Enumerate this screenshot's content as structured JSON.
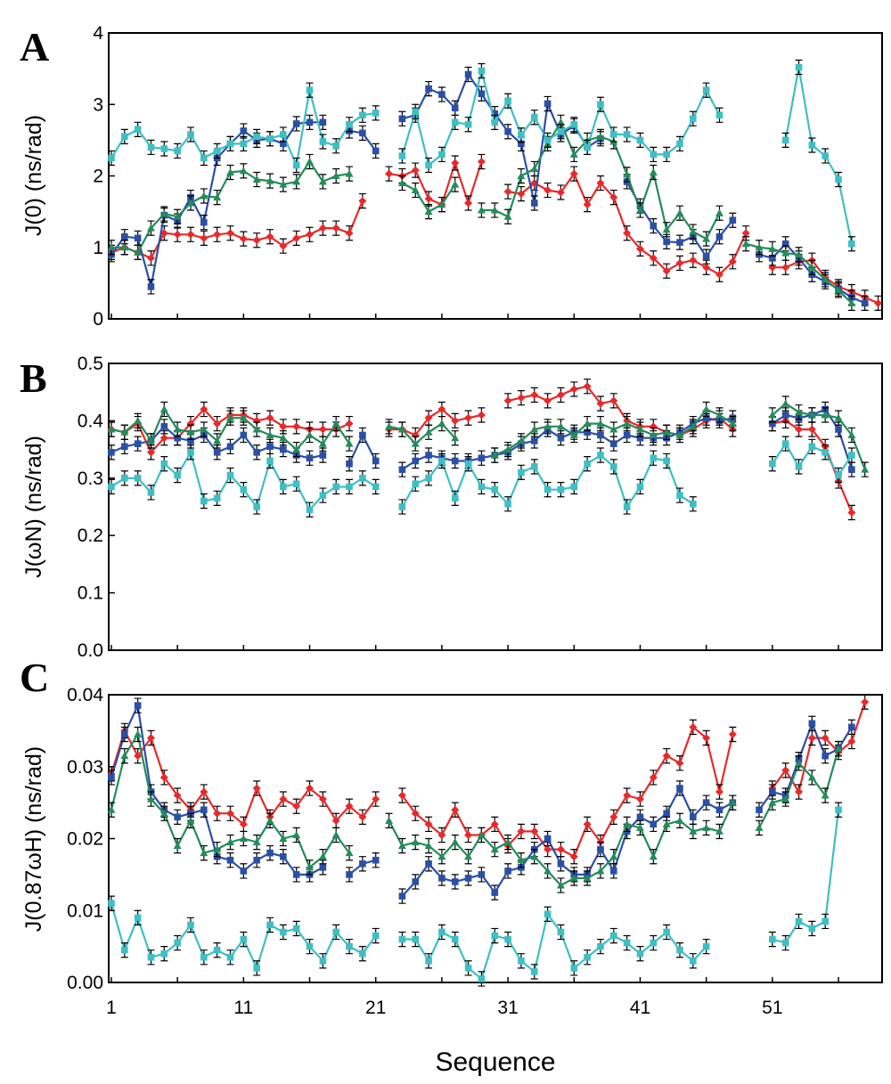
{
  "figure": {
    "xlabel": "Sequence",
    "x_ticks": [
      1,
      11,
      21,
      31,
      41,
      51
    ]
  },
  "series_colors": {
    "red": "#e8292a",
    "blue": "#2b4fa6",
    "green": "#238c5a",
    "cyan": "#3dbfc4"
  },
  "chart_data": [
    {
      "type": "line",
      "panel": "A",
      "ylabel": "J(0) (ns/rad)",
      "ylim": [
        0,
        4
      ],
      "xlim": [
        1,
        59
      ],
      "y_ticks": [
        0,
        1,
        2,
        3,
        4
      ],
      "y_tick_labels": [
        "0",
        "1",
        "2",
        "3",
        "4"
      ],
      "x": [
        1,
        2,
        3,
        4,
        5,
        6,
        7,
        8,
        9,
        10,
        11,
        12,
        13,
        14,
        15,
        16,
        17,
        18,
        19,
        20,
        21,
        22,
        23,
        24,
        25,
        26,
        27,
        28,
        29,
        30,
        31,
        32,
        33,
        34,
        35,
        36,
        37,
        38,
        39,
        40,
        41,
        42,
        43,
        44,
        45,
        46,
        47,
        48,
        49,
        50,
        51,
        52,
        53,
        54,
        55,
        56,
        57,
        58,
        59
      ],
      "series": [
        {
          "color": "red",
          "marker": "diamond",
          "values": [
            0.93,
            1.0,
            0.93,
            0.85,
            1.2,
            1.18,
            1.18,
            1.13,
            1.18,
            1.2,
            1.12,
            1.1,
            1.15,
            1.02,
            1.13,
            1.18,
            1.27,
            1.27,
            1.2,
            1.65,
            null,
            2.03,
            2.0,
            2.08,
            1.68,
            1.6,
            2.18,
            1.62,
            2.2,
            null,
            1.78,
            1.75,
            1.9,
            1.8,
            1.77,
            2.03,
            1.6,
            1.9,
            1.7,
            1.2,
            0.98,
            0.85,
            0.67,
            0.78,
            0.82,
            0.72,
            0.62,
            0.8,
            1.2,
            null,
            0.72,
            0.72,
            0.8,
            0.82,
            0.58,
            0.45,
            0.38,
            0.3,
            0.22
          ]
        },
        {
          "color": "blue",
          "marker": "square",
          "values": [
            0.9,
            1.15,
            1.13,
            0.45,
            1.45,
            1.37,
            1.7,
            1.35,
            2.25,
            2.45,
            2.63,
            2.5,
            2.52,
            2.45,
            2.73,
            2.75,
            2.75,
            null,
            2.63,
            2.6,
            2.35,
            null,
            2.8,
            2.85,
            3.22,
            3.14,
            2.95,
            3.42,
            3.15,
            2.87,
            2.62,
            2.45,
            1.62,
            3.01,
            2.58,
            2.7,
            2.4,
            2.52,
            null,
            1.92,
            1.58,
            1.3,
            1.08,
            1.07,
            1.15,
            0.87,
            1.15,
            1.38,
            null,
            0.9,
            0.85,
            1.05,
            0.85,
            0.62,
            0.52,
            0.42,
            0.3,
            0.22,
            null
          ]
        },
        {
          "color": "green",
          "marker": "triangle",
          "values": [
            1.0,
            1.0,
            0.93,
            1.27,
            1.47,
            1.43,
            1.62,
            1.72,
            1.7,
            2.05,
            2.07,
            1.95,
            1.93,
            1.88,
            1.92,
            2.2,
            1.92,
            2.0,
            2.03,
            null,
            null,
            null,
            1.9,
            1.8,
            1.5,
            1.6,
            1.88,
            null,
            1.52,
            1.52,
            1.43,
            2.0,
            2.1,
            2.45,
            2.75,
            2.3,
            2.5,
            2.55,
            2.48,
            2.02,
            1.52,
            2.05,
            1.25,
            1.48,
            1.22,
            1.12,
            1.48,
            null,
            1.05,
            1.0,
            0.98,
            0.92,
            0.9,
            0.72,
            0.55,
            0.4,
            0.22,
            null,
            null
          ]
        },
        {
          "color": "cyan",
          "marker": "square",
          "values": [
            2.25,
            2.55,
            2.65,
            2.4,
            2.38,
            2.35,
            2.58,
            2.25,
            2.35,
            2.45,
            2.45,
            2.55,
            2.52,
            2.58,
            2.15,
            3.2,
            2.48,
            2.42,
            2.72,
            2.85,
            2.88,
            null,
            2.28,
            2.9,
            2.15,
            2.3,
            2.75,
            2.72,
            3.47,
            2.75,
            3.05,
            2.57,
            2.82,
            2.5,
            2.62,
            2.72,
            2.4,
            3.0,
            2.58,
            2.58,
            2.5,
            2.3,
            2.3,
            2.45,
            2.8,
            3.2,
            2.85,
            null,
            null,
            null,
            null,
            2.5,
            3.52,
            2.43,
            2.28,
            1.95,
            1.05,
            null,
            null
          ]
        }
      ]
    },
    {
      "type": "line",
      "panel": "B",
      "ylabel": "J(ωN) (ns/rad)",
      "ylim": [
        0,
        0.5
      ],
      "xlim": [
        1,
        59
      ],
      "y_ticks": [
        0,
        0.1,
        0.2,
        0.3,
        0.4,
        0.5
      ],
      "y_tick_labels": [
        "0.0",
        "0.1",
        "0.2",
        "0.3",
        "0.4",
        "0.5"
      ],
      "x": [
        1,
        2,
        3,
        4,
        5,
        6,
        7,
        8,
        9,
        10,
        11,
        12,
        13,
        14,
        15,
        16,
        17,
        18,
        19,
        20,
        21,
        22,
        23,
        24,
        25,
        26,
        27,
        28,
        29,
        30,
        31,
        32,
        33,
        34,
        35,
        36,
        37,
        38,
        39,
        40,
        41,
        42,
        43,
        44,
        45,
        46,
        47,
        48,
        49,
        50,
        51,
        52,
        53,
        54,
        55,
        56,
        57,
        58,
        59
      ],
      "series": [
        {
          "color": "red",
          "marker": "diamond",
          "values": [
            0.385,
            0.38,
            0.395,
            0.345,
            0.37,
            0.37,
            0.395,
            0.42,
            0.395,
            0.41,
            0.41,
            0.4,
            0.405,
            0.39,
            0.39,
            0.385,
            0.385,
            0.385,
            0.395,
            null,
            null,
            0.385,
            0.385,
            0.375,
            0.405,
            0.42,
            0.4,
            0.405,
            0.41,
            null,
            0.435,
            0.44,
            0.445,
            0.435,
            0.445,
            0.455,
            0.46,
            0.43,
            0.435,
            0.4,
            0.39,
            0.39,
            0.38,
            0.375,
            0.385,
            0.4,
            0.405,
            0.385,
            null,
            null,
            0.395,
            0.4,
            0.385,
            0.385,
            0.355,
            0.295,
            0.24,
            null,
            null
          ]
        },
        {
          "color": "blue",
          "marker": "square",
          "values": [
            0.345,
            0.355,
            0.36,
            0.365,
            0.39,
            0.37,
            0.365,
            0.375,
            0.345,
            0.355,
            0.375,
            0.345,
            0.355,
            0.35,
            0.34,
            0.335,
            0.34,
            null,
            0.325,
            0.375,
            0.33,
            null,
            0.315,
            0.33,
            0.34,
            0.335,
            0.33,
            0.33,
            0.335,
            0.34,
            0.345,
            0.36,
            0.365,
            0.385,
            0.37,
            0.38,
            0.38,
            0.375,
            0.36,
            0.375,
            0.37,
            0.37,
            0.37,
            0.38,
            0.395,
            0.405,
            0.4,
            0.405,
            null,
            null,
            0.395,
            0.41,
            0.405,
            0.41,
            0.42,
            0.385,
            0.315,
            null,
            null
          ]
        },
        {
          "color": "green",
          "marker": "triangle",
          "values": [
            0.385,
            0.38,
            0.4,
            0.365,
            0.42,
            0.385,
            0.38,
            0.385,
            0.365,
            0.405,
            0.405,
            0.385,
            0.375,
            0.37,
            0.35,
            0.375,
            0.36,
            0.395,
            0.36,
            null,
            null,
            0.39,
            0.385,
            0.36,
            0.38,
            0.395,
            0.37,
            null,
            null,
            0.34,
            0.35,
            0.365,
            0.385,
            0.39,
            0.39,
            0.375,
            0.395,
            0.395,
            0.385,
            0.395,
            0.385,
            0.375,
            0.38,
            0.375,
            0.39,
            0.42,
            0.41,
            0.395,
            null,
            null,
            0.41,
            0.43,
            0.415,
            0.41,
            0.41,
            0.405,
            0.375,
            0.315,
            null
          ]
        },
        {
          "color": "cyan",
          "marker": "square",
          "values": [
            0.285,
            0.3,
            0.3,
            0.275,
            0.325,
            0.305,
            0.345,
            0.26,
            0.265,
            0.305,
            0.28,
            0.25,
            0.33,
            0.285,
            0.29,
            0.245,
            0.27,
            0.285,
            0.285,
            0.3,
            0.285,
            null,
            0.25,
            0.29,
            0.3,
            0.33,
            0.265,
            0.325,
            0.285,
            0.28,
            0.255,
            0.31,
            0.32,
            0.28,
            0.28,
            0.285,
            0.325,
            0.34,
            0.32,
            0.25,
            0.285,
            0.335,
            0.33,
            0.27,
            0.255,
            null,
            null,
            null,
            null,
            null,
            0.325,
            0.36,
            0.32,
            0.355,
            0.345,
            0.305,
            0.34,
            null,
            null
          ]
        }
      ]
    },
    {
      "type": "line",
      "panel": "C",
      "ylabel": "J(0.87ωH) (ns/rad)",
      "ylim": [
        0,
        0.04
      ],
      "xlim": [
        1,
        59
      ],
      "y_ticks": [
        0,
        0.01,
        0.02,
        0.03,
        0.04
      ],
      "y_tick_labels": [
        "0.00",
        "0.01",
        "0.02",
        "0.03",
        "0.04"
      ],
      "x": [
        1,
        2,
        3,
        4,
        5,
        6,
        7,
        8,
        9,
        10,
        11,
        12,
        13,
        14,
        15,
        16,
        17,
        18,
        19,
        20,
        21,
        22,
        23,
        24,
        25,
        26,
        27,
        28,
        29,
        30,
        31,
        32,
        33,
        34,
        35,
        36,
        37,
        38,
        39,
        40,
        41,
        42,
        43,
        44,
        45,
        46,
        47,
        48,
        49,
        50,
        51,
        52,
        53,
        54,
        55,
        56,
        57,
        58,
        59
      ],
      "series": [
        {
          "color": "red",
          "marker": "diamond",
          "values": [
            0.029,
            0.035,
            0.0315,
            0.034,
            0.0285,
            0.026,
            0.024,
            0.0265,
            0.0235,
            0.0235,
            0.022,
            0.027,
            0.023,
            0.0255,
            0.0245,
            0.027,
            0.0255,
            0.0225,
            0.0245,
            0.023,
            0.0255,
            null,
            0.026,
            0.0235,
            0.022,
            0.0205,
            0.024,
            0.0205,
            0.0205,
            0.022,
            0.019,
            0.021,
            0.021,
            0.0185,
            0.0185,
            0.0175,
            0.022,
            0.0195,
            0.023,
            0.026,
            0.0255,
            0.0285,
            0.0315,
            0.0305,
            0.0355,
            0.034,
            0.0265,
            0.0345,
            null,
            null,
            0.027,
            0.0295,
            0.0265,
            0.034,
            0.034,
            0.032,
            0.0335,
            0.039,
            null
          ]
        },
        {
          "color": "blue",
          "marker": "square",
          "values": [
            0.0285,
            0.0345,
            0.0385,
            0.0265,
            0.024,
            0.023,
            0.0235,
            0.024,
            0.0175,
            0.017,
            0.0155,
            0.017,
            0.018,
            0.0175,
            0.015,
            0.015,
            0.016,
            null,
            0.015,
            0.0165,
            0.017,
            null,
            0.012,
            0.014,
            0.0165,
            0.0145,
            0.014,
            0.0145,
            0.015,
            0.0125,
            0.0155,
            0.016,
            0.0185,
            0.02,
            0.0165,
            0.015,
            0.015,
            0.0185,
            0.0155,
            0.021,
            0.023,
            0.022,
            0.0235,
            0.027,
            0.023,
            0.025,
            0.024,
            0.025,
            null,
            0.024,
            0.0265,
            0.026,
            0.031,
            0.036,
            0.0315,
            0.0325,
            0.0355,
            null,
            null
          ]
        },
        {
          "color": "green",
          "marker": "triangle",
          "values": [
            0.024,
            0.0315,
            0.0345,
            0.0255,
            0.0235,
            0.019,
            0.0225,
            0.018,
            0.0185,
            0.0195,
            0.02,
            0.0195,
            0.0225,
            0.02,
            0.0205,
            0.016,
            0.0175,
            0.0205,
            0.018,
            null,
            null,
            0.0225,
            0.019,
            0.0195,
            0.019,
            0.0175,
            0.0195,
            0.0175,
            0.0205,
            0.0185,
            0.0195,
            0.017,
            0.0175,
            0.0155,
            0.0135,
            0.0145,
            0.0145,
            0.0155,
            0.0175,
            0.022,
            0.0215,
            0.0175,
            0.022,
            0.0225,
            0.021,
            0.0215,
            0.021,
            0.025,
            null,
            0.0215,
            0.025,
            0.0255,
            0.0305,
            0.0285,
            0.026,
            0.0325,
            null,
            null,
            null
          ]
        },
        {
          "color": "cyan",
          "marker": "square",
          "values": [
            0.011,
            0.0045,
            0.009,
            0.0035,
            0.004,
            0.0055,
            0.008,
            0.0035,
            0.0045,
            0.0035,
            0.006,
            0.002,
            0.008,
            0.007,
            0.0075,
            0.005,
            0.003,
            0.007,
            0.005,
            0.004,
            0.0065,
            null,
            0.006,
            0.006,
            0.003,
            0.007,
            0.006,
            0.002,
            0.0005,
            0.0065,
            0.006,
            0.003,
            0.0015,
            0.0095,
            0.007,
            0.002,
            0.0035,
            0.005,
            0.0065,
            0.0055,
            0.004,
            0.0055,
            0.007,
            0.0045,
            0.003,
            0.005,
            null,
            null,
            null,
            null,
            0.006,
            0.0055,
            0.0085,
            0.0075,
            0.0085,
            0.024,
            null,
            null,
            null
          ]
        }
      ]
    }
  ]
}
